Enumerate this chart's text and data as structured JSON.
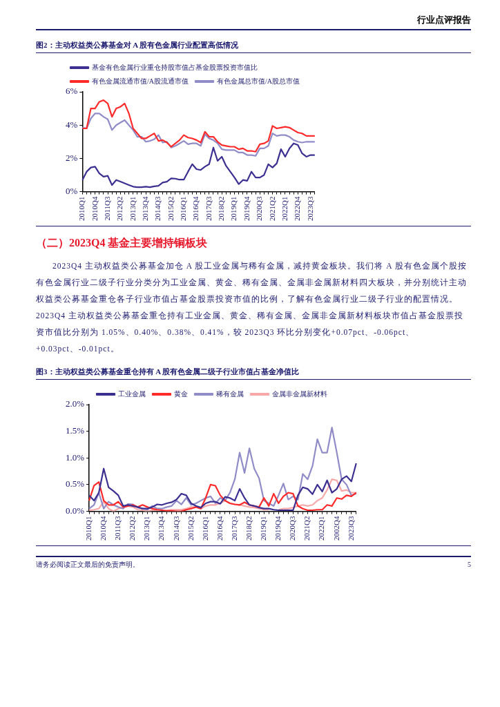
{
  "chart_data": [
    {
      "type": "other",
      "title": "行业点评报告"
    },
    {
      "type": "line",
      "title": "图2：主动权益类公募基金对 A 股有色金属行业配置高低情况",
      "categories": [
        "2010Q1",
        null,
        null,
        "2010Q4",
        null,
        null,
        "2011Q3",
        null,
        null,
        "2012Q2",
        null,
        null,
        "2013Q1",
        null,
        null,
        "2013Q4",
        null,
        null,
        "2014Q3",
        null,
        null,
        "2015Q2",
        null,
        null,
        "2016Q1",
        null,
        null,
        "2016Q4",
        null,
        null,
        "2017Q3",
        null,
        null,
        "2018Q2",
        null,
        null,
        "2019Q1",
        null,
        null,
        "2019Q4",
        null,
        null,
        "2020Q3",
        null,
        null,
        "2021Q2",
        null,
        null,
        "2022Q1",
        null,
        null,
        "2022Q4",
        null,
        null,
        "2023Q3",
        null
      ],
      "series": [
        {
          "name": "基金有色金属行业重仓持股市值占基金股票投资市值比",
          "color": "#3b3092",
          "values": [
            0.7,
            1.2,
            1.45,
            1.5,
            1.1,
            0.9,
            0.95,
            0.4,
            0.7,
            0.6,
            0.5,
            0.4,
            0.3,
            0.27,
            0.27,
            0.3,
            0.27,
            0.32,
            0.35,
            0.55,
            0.6,
            0.8,
            0.78,
            0.72,
            0.72,
            1.2,
            1.65,
            1.35,
            1.3,
            1.5,
            1.65,
            2.65,
            1.85,
            2.1,
            1.55,
            1.2,
            0.85,
            0.45,
            0.7,
            0.65,
            1.2,
            0.85,
            0.85,
            1.0,
            1.65,
            1.45,
            1.7,
            2.55,
            2.1,
            2.6,
            2.9,
            2.8,
            2.3,
            2.1,
            2.2,
            2.2
          ]
        },
        {
          "name": "有色金属流通市值/A股流通市值",
          "color": "#ff2a2a",
          "values": [
            3.8,
            3.8,
            5.0,
            5.0,
            5.4,
            5.5,
            5.3,
            4.5,
            5.0,
            5.1,
            5.3,
            4.7,
            3.8,
            3.5,
            3.2,
            3.2,
            3.35,
            3.5,
            3.05,
            3.1,
            2.95,
            2.7,
            2.9,
            3.1,
            3.4,
            3.25,
            3.2,
            3.1,
            2.95,
            3.6,
            3.3,
            3.3,
            3.0,
            2.8,
            2.75,
            2.7,
            2.7,
            2.55,
            2.6,
            2.45,
            2.45,
            2.4,
            2.85,
            2.9,
            3.05,
            3.95,
            3.8,
            3.85,
            3.9,
            3.85,
            3.7,
            3.55,
            3.5,
            3.35,
            3.35,
            3.35
          ]
        },
        {
          "name": "有色金属总市值/A股总市值",
          "color": "#8f8cc8",
          "values": [
            3.85,
            3.8,
            4.4,
            4.7,
            4.7,
            4.5,
            4.35,
            3.7,
            4.0,
            4.15,
            4.3,
            4.0,
            3.7,
            3.3,
            3.3,
            3.0,
            3.05,
            3.15,
            3.4,
            2.95,
            3.0,
            2.65,
            2.75,
            2.9,
            3.05,
            2.85,
            2.9,
            2.9,
            2.75,
            3.45,
            3.2,
            3.1,
            2.9,
            2.55,
            2.5,
            2.5,
            2.5,
            2.35,
            2.35,
            2.2,
            2.2,
            2.15,
            2.6,
            2.6,
            2.75,
            3.5,
            3.35,
            3.4,
            3.4,
            3.3,
            3.1,
            3.0,
            2.95,
            3.0,
            3.0,
            3.0
          ]
        }
      ],
      "ylim": [
        0,
        6
      ],
      "yticks": [
        {
          "value": 0,
          "label": "0%"
        },
        {
          "value": 2,
          "label": "2%"
        },
        {
          "value": 4,
          "label": "4%"
        },
        {
          "value": 6,
          "label": "6%"
        }
      ],
      "grid": false,
      "legend": "top left",
      "marker": "none",
      "line_style": "solid"
    },
    {
      "type": "other",
      "title": "（二）2023Q4 基金主要增持铜板块",
      "annotations": [
        "2023Q4 主动权益类公募基金加仓 A 股工业金属与稀有金属，减持黄金板块。我们将 A 股有色金属个股按有色金属行业二级子行业分类分为工业金属、黄金、稀有金属、金属非金属新材料四大板块，并分别统计主动权益类公募基金重仓各子行业市值占基金股票投资市值的比例，了解有色金属行业二级子行业的配置情况。2023Q4 主动权益类公募基金重仓持有工业金属、黄金、稀有金属、金属非金属新材料板块市值占基金股票投资市值比分别为 1.05%、0.40%、0.38%、0.41%，较 2023Q3 环比分别变化+0.07pct、-0.06pct、+0.03pct、-0.01pct。"
      ]
    },
    {
      "type": "line",
      "title": "图3：主动权益类公募基金重仓持有 A 股有色金属二级子行业市值占基金净值比",
      "categories": [
        "2010Q1",
        null,
        null,
        "2010Q4",
        null,
        null,
        "2011Q3",
        null,
        null,
        "2012Q2",
        null,
        null,
        "2013Q1",
        null,
        null,
        "2013Q4",
        null,
        null,
        "2014Q3",
        null,
        null,
        "2015Q2",
        null,
        null,
        "2016Q1",
        null,
        null,
        "2016Q4",
        null,
        null,
        "2017Q3",
        null,
        null,
        "2018Q2",
        null,
        null,
        "2019Q1",
        null,
        null,
        "2019Q4",
        null,
        null,
        "2020Q3",
        null,
        null,
        "2021Q2",
        null,
        null,
        "2022Q1",
        null,
        null,
        "2002Q4",
        null,
        null,
        "2023Q3",
        null
      ],
      "series": [
        {
          "name": "工业金属",
          "color": "#3b3092",
          "values": [
            0.3,
            0.2,
            0.35,
            0.8,
            0.45,
            0.38,
            0.3,
            0.1,
            0.12,
            0.1,
            0.08,
            0.05,
            0.05,
            0.08,
            0.13,
            0.12,
            0.15,
            0.17,
            0.22,
            0.33,
            0.3,
            0.15,
            0.1,
            0.07,
            0.15,
            0.18,
            0.18,
            0.14,
            0.27,
            0.25,
            0.2,
            0.42,
            0.25,
            0.12,
            0.1,
            0.07,
            0.05,
            0.05,
            0.03,
            0.02,
            0.02,
            0.02,
            0.02,
            0.3,
            0.45,
            0.42,
            0.32,
            0.5,
            0.37,
            0.58,
            0.35,
            0.42,
            0.6,
            0.66,
            0.56,
            0.9
          ]
        },
        {
          "name": "黄金",
          "color": "#ff2a2a",
          "values": [
            0.2,
            0.48,
            0.55,
            0.2,
            0.12,
            0.12,
            0.18,
            0.08,
            0.1,
            0.12,
            0.08,
            0.12,
            0.08,
            0.05,
            0.03,
            0.02,
            0.01,
            0.01,
            0.0,
            0.0,
            0.03,
            0.05,
            0.08,
            0.05,
            0.25,
            0.5,
            0.48,
            0.3,
            0.2,
            0.15,
            0.13,
            0.12,
            0.17,
            0.12,
            0.1,
            0.08,
            0.25,
            0.1,
            0.33,
            0.15,
            0.28,
            0.35,
            0.33,
            0.1,
            0.05,
            0.02,
            0.02,
            0.03,
            0.03,
            0.12,
            0.1,
            0.25,
            0.23,
            0.3,
            0.28,
            0.35
          ]
        },
        {
          "name": "稀有金属",
          "color": "#8f8cc8",
          "values": [
            0.05,
            0.12,
            0.35,
            0.05,
            0.18,
            0.12,
            0.08,
            0.05,
            0.14,
            0.13,
            0.07,
            0.05,
            0.03,
            0.1,
            0.05,
            0.05,
            0.08,
            0.1,
            0.2,
            0.13,
            0.25,
            0.12,
            0.15,
            0.2,
            0.25,
            0.28,
            0.15,
            0.25,
            0.2,
            0.35,
            0.6,
            1.1,
            0.72,
            1.18,
            0.8,
            0.62,
            0.2,
            0.15,
            0.1,
            0.3,
            0.52,
            0.22,
            0.28,
            0.22,
            0.7,
            0.6,
            0.85,
            1.35,
            1.1,
            1.1,
            1.57,
            1.1,
            0.6,
            0.5,
            0.3,
            0.33
          ]
        },
        {
          "name": "金属非金属新材料",
          "color": "#f8a8a8",
          "values": [
            0.02,
            0.03,
            0.05,
            0.18,
            0.05,
            0.0,
            0.05,
            0.07,
            0.1,
            0.08,
            0.03,
            0.02,
            0.0,
            0.02,
            0.02,
            null,
            0.02,
            0.03,
            0.03,
            0.03,
            0.05,
            0.08,
            0.08,
            0.05,
            0.1,
            0.12,
            0.12,
            0.15,
            0.2,
            0.15,
            0.13,
            0.12,
            0.1,
            0.08,
            0.07,
            0.05,
            0.03,
            0.03,
            null,
            0.03,
            0.05,
            0.05,
            0.07,
            0.1,
            0.12,
            0.1,
            0.12,
            0.2,
            0.25,
            0.4,
            0.6,
            0.58,
            0.38,
            0.4,
            0.35,
            0.35
          ]
        }
      ],
      "ylim": [
        0,
        2
      ],
      "yticks": [
        {
          "value": 0,
          "label": "0.0%"
        },
        {
          "value": 0.5,
          "label": "0.5%"
        },
        {
          "value": 1,
          "label": "1.0%"
        },
        {
          "value": 1.5,
          "label": "1.5%"
        },
        {
          "value": 2,
          "label": "2.0%"
        }
      ],
      "grid": false,
      "legend": "top",
      "marker": "none",
      "line_style": "solid"
    },
    {
      "type": "other",
      "annotations": [
        "请务必阅读正文最后的免责声明。",
        "5"
      ]
    }
  ]
}
